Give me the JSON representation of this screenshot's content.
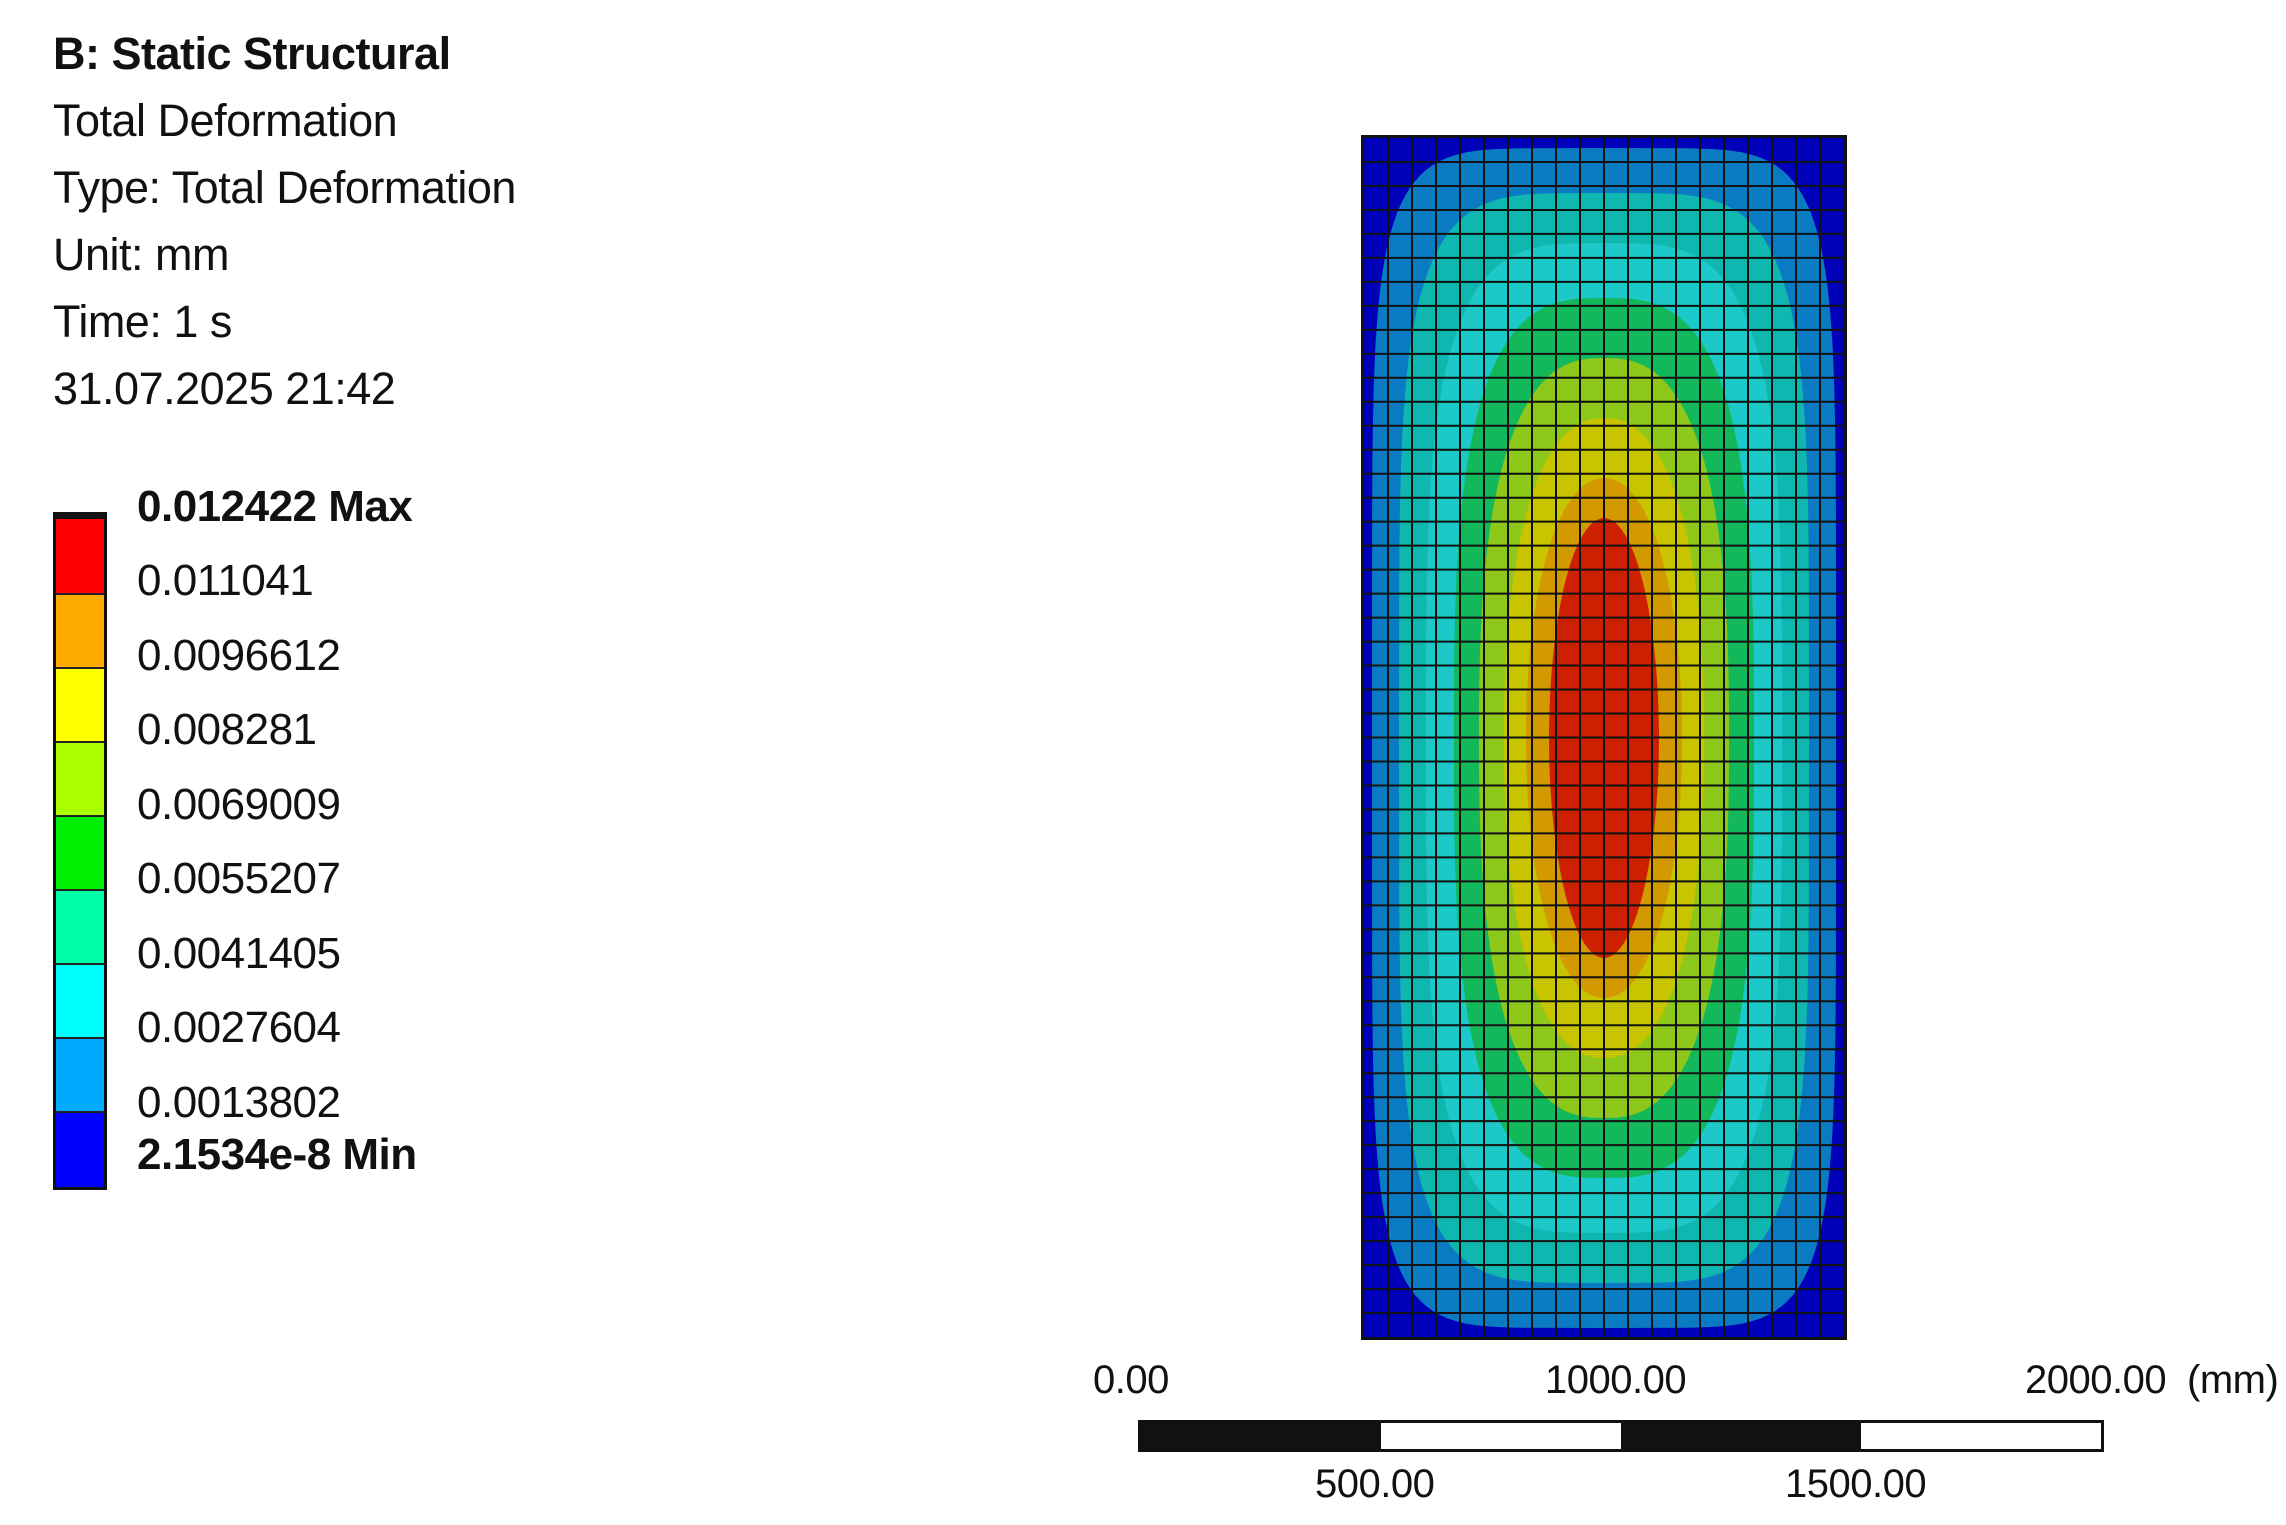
{
  "info": {
    "title": "B: Static Structural",
    "result": "Total Deformation",
    "type": "Type: Total Deformation",
    "unit": "Unit: mm",
    "time": "Time: 1 s",
    "timestamp": "31.07.2025 21:42"
  },
  "legend": {
    "max_label": "0.012422 Max",
    "min_label": "2.1534e-8 Min",
    "levels": [
      "0.011041",
      "0.0096612",
      "0.008281",
      "0.0069009",
      "0.0055207",
      "0.0041405",
      "0.0027604",
      "0.0013802"
    ],
    "colors": [
      "#ff0000",
      "#ffaa00",
      "#ffff00",
      "#aaff00",
      "#00ee00",
      "#00ffaa",
      "#00ffff",
      "#00aaff",
      "#0000ff"
    ]
  },
  "contour": {
    "band_colors": [
      "#0000b8",
      "#0a7bc2",
      "#10b7b0",
      "#1cc8c8",
      "#12b85a",
      "#8ec81a",
      "#c8c400",
      "#d29a00",
      "#cc2000"
    ],
    "mesh": {
      "columns": 20,
      "rows": 50
    }
  },
  "scale_bar": {
    "unit": "(mm)",
    "top_ticks": [
      "0.00",
      "1000.00",
      "2000.00"
    ],
    "bottom_ticks": [
      "500.00",
      "1500.00"
    ]
  }
}
